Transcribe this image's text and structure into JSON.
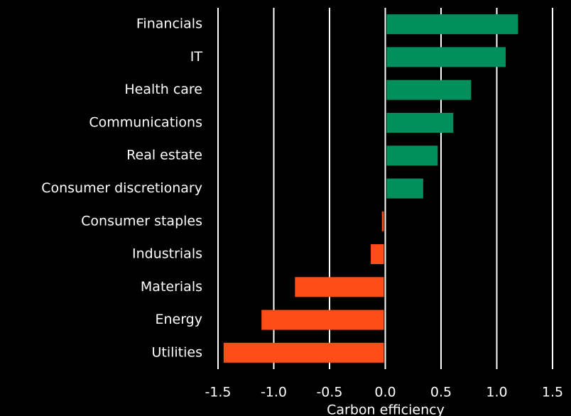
{
  "chart_data": {
    "type": "barh",
    "categories": [
      "Financials",
      "IT",
      "Health care",
      "Communications",
      "Real estate",
      "Consumer discretionary",
      "Consumer staples",
      "Industrials",
      "Materials",
      "Energy",
      "Utilities"
    ],
    "values": [
      1.19,
      1.08,
      0.77,
      0.61,
      0.47,
      0.34,
      -0.03,
      -0.13,
      -0.81,
      -1.11,
      -1.45
    ],
    "positive_color": "#008f5d",
    "negative_color": "#ff4d17",
    "xlabel": "Carbon efficiency",
    "xlim": [
      -1.5,
      1.5
    ],
    "xticks": [
      -1.5,
      {
        "value": -1,
        "label": "-1.0"
      },
      -0.5,
      {
        "value": 0,
        "label": "0.0"
      },
      0.5,
      {
        "value": 1,
        "label": "1.0"
      },
      1.5
    ],
    "grid": true
  }
}
